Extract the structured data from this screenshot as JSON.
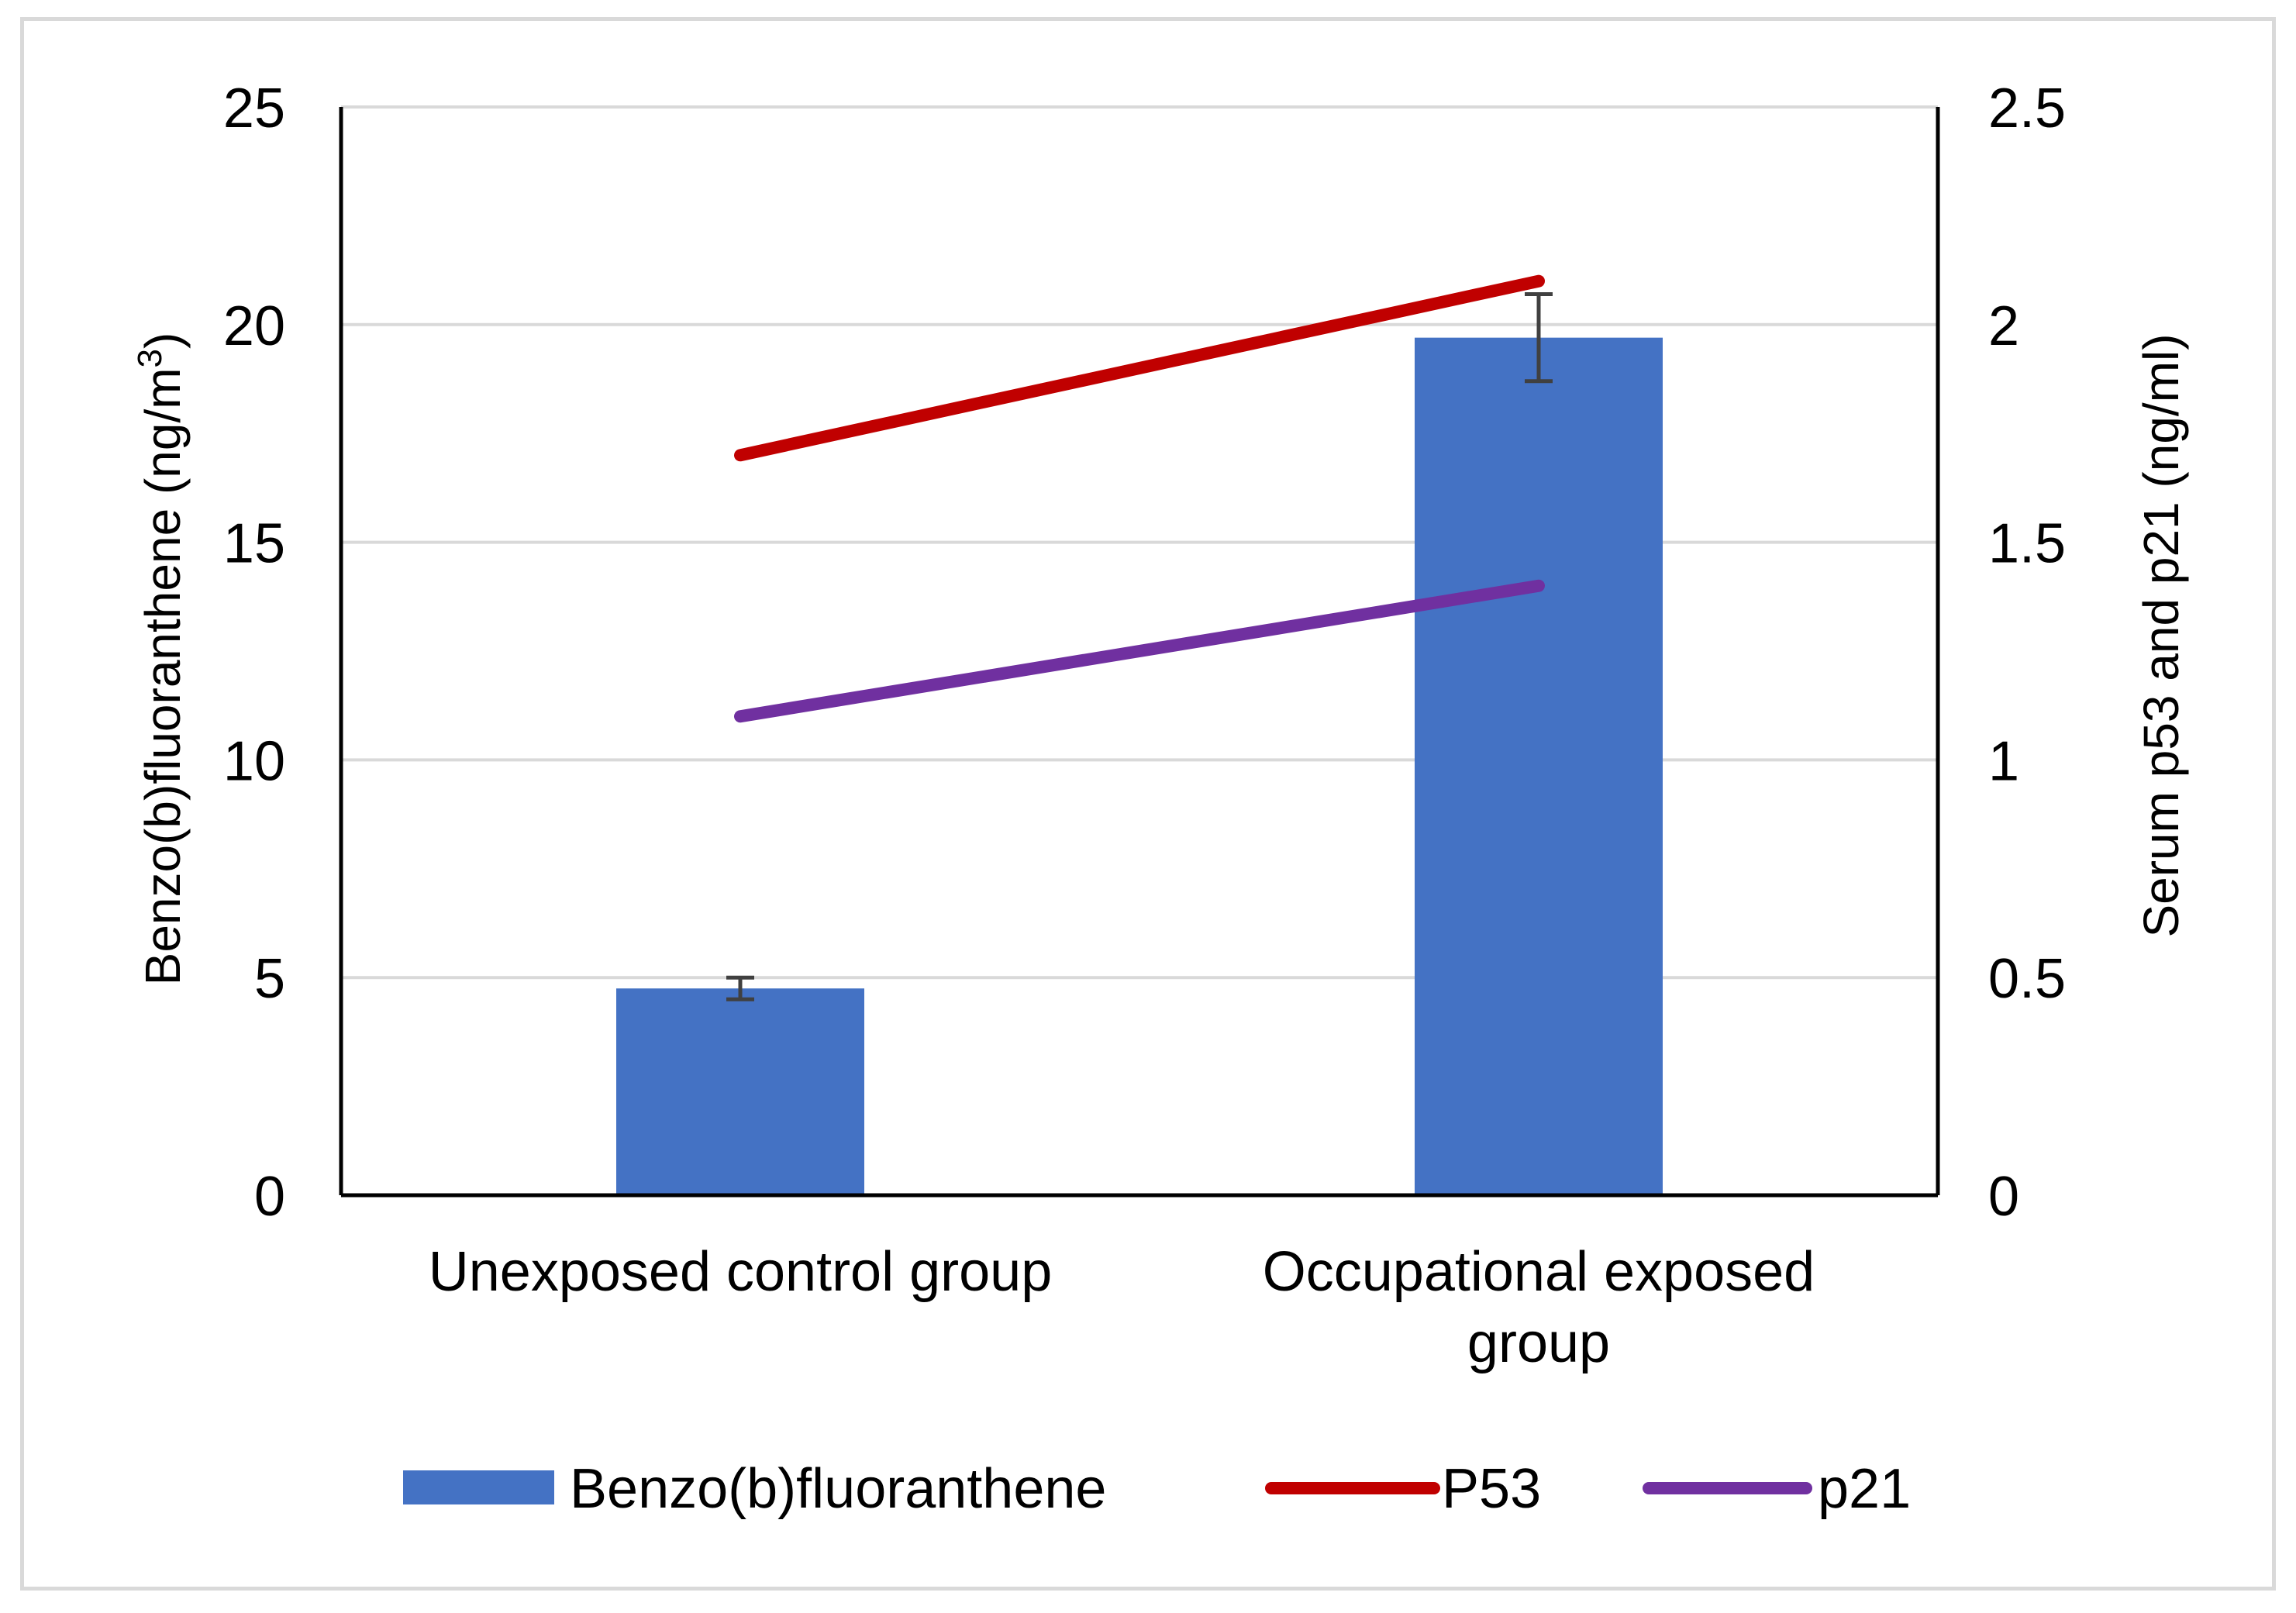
{
  "chart_data": {
    "type": "bar",
    "categories": [
      [
        "Unexposed control group"
      ],
      [
        "Occupational exposed",
        "group"
      ]
    ],
    "bar_series": {
      "name": "Benzo(b)fluoranthene",
      "values": [
        4.75,
        19.7
      ],
      "error": [
        0.25,
        1.0
      ],
      "color": "#4472c4",
      "axis": "left"
    },
    "line_series": [
      {
        "name": "P53",
        "values": [
          1.7,
          2.1
        ],
        "color": "#c00000",
        "axis": "right"
      },
      {
        "name": "p21",
        "values": [
          1.1,
          1.4
        ],
        "color": "#7030a0",
        "axis": "right"
      }
    ],
    "left_axis": {
      "label": "Benzo(b)fluoranthene  (ng/m3)",
      "label_main": "Benzo(b)fluoranthene  (ng/m",
      "label_sup": "3",
      "label_end": ")",
      "ylim": [
        0,
        25
      ],
      "ticks": [
        "0",
        "5",
        "10",
        "15",
        "20",
        "25"
      ]
    },
    "right_axis": {
      "label": "Serum p53 and p21 (ng/ml)",
      "ylim": [
        0,
        2.5
      ],
      "ticks": [
        "0",
        "0.5",
        "1",
        "1.5",
        "2",
        "2.5"
      ]
    },
    "grid": true,
    "legend_position": "bottom",
    "colors": {
      "grid": "#d9d9d9",
      "axis": "#000000",
      "error_bar": "#404040"
    }
  }
}
